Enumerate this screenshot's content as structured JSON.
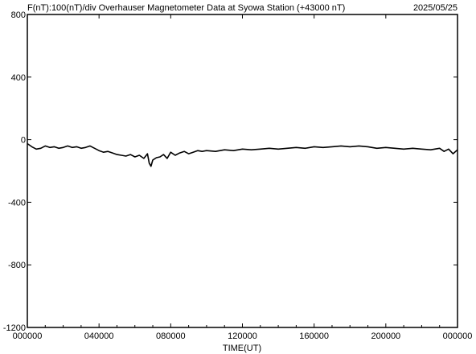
{
  "header": {
    "title": "F(nT):100(nT)/div  Overhauser Magnetometer Data at Syowa Station (+43000 nT)",
    "date": "2025/05/25"
  },
  "chart_data": {
    "type": "line",
    "title": "F(nT):100(nT)/div  Overhauser Magnetometer Data at Syowa Station (+43000 nT)",
    "date": "2025/05/25",
    "xlabel": "TIME(UT)",
    "ylabel": "",
    "xlim": [
      0,
      24
    ],
    "ylim": [
      -1200,
      800
    ],
    "x_ticks": [
      0,
      4,
      8,
      12,
      16,
      20,
      24
    ],
    "x_tick_labels": [
      "000000",
      "040000",
      "080000",
      "120000",
      "160000",
      "200000",
      "000000"
    ],
    "y_ticks": [
      800,
      400,
      0,
      -400,
      -800,
      -1200
    ],
    "y_tick_labels": [
      "800",
      "400",
      "0",
      "-400",
      "-800",
      "-1200"
    ],
    "grid": false,
    "series": [
      {
        "name": "",
        "color": "#000000",
        "x": [
          0,
          0.25,
          0.5,
          0.75,
          1.0,
          1.25,
          1.5,
          1.75,
          2.0,
          2.25,
          2.5,
          2.75,
          3.0,
          3.25,
          3.5,
          3.75,
          4.0,
          4.25,
          4.5,
          4.75,
          5.0,
          5.25,
          5.5,
          5.75,
          6.0,
          6.25,
          6.5,
          6.7,
          6.8,
          6.9,
          7.0,
          7.2,
          7.4,
          7.6,
          7.8,
          8.0,
          8.25,
          8.5,
          8.75,
          9.0,
          9.25,
          9.5,
          9.75,
          10.0,
          10.5,
          11.0,
          11.5,
          12.0,
          12.5,
          13.0,
          13.5,
          14.0,
          14.5,
          15.0,
          15.5,
          16.0,
          16.5,
          17.0,
          17.5,
          18.0,
          18.5,
          19.0,
          19.5,
          20.0,
          20.5,
          21.0,
          21.5,
          22.0,
          22.5,
          23.0,
          23.25,
          23.5,
          23.75,
          24.0
        ],
        "values": [
          -25,
          -45,
          -60,
          -55,
          -40,
          -50,
          -45,
          -55,
          -50,
          -40,
          -50,
          -45,
          -55,
          -50,
          -40,
          -55,
          -70,
          -80,
          -75,
          -85,
          -95,
          -100,
          -105,
          -95,
          -110,
          -100,
          -120,
          -90,
          -150,
          -170,
          -130,
          -115,
          -110,
          -95,
          -120,
          -80,
          -100,
          -85,
          -75,
          -90,
          -80,
          -70,
          -75,
          -70,
          -75,
          -65,
          -70,
          -60,
          -65,
          -60,
          -55,
          -60,
          -55,
          -50,
          -55,
          -45,
          -50,
          -45,
          -40,
          -45,
          -40,
          -45,
          -55,
          -50,
          -55,
          -60,
          -55,
          -60,
          -65,
          -55,
          -75,
          -60,
          -90,
          -65
        ]
      }
    ]
  }
}
